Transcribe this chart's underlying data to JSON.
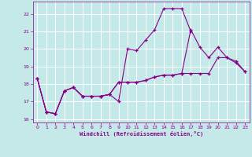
{
  "xlabel": "Windchill (Refroidissement éolien,°C)",
  "xlim": [
    -0.5,
    23.5
  ],
  "ylim": [
    15.8,
    22.7
  ],
  "yticks": [
    16,
    17,
    18,
    19,
    20,
    21,
    22
  ],
  "xticks": [
    0,
    1,
    2,
    3,
    4,
    5,
    6,
    7,
    8,
    9,
    10,
    11,
    12,
    13,
    14,
    15,
    16,
    17,
    18,
    19,
    20,
    21,
    22,
    23
  ],
  "background_color": "#c5e8e8",
  "grid_color": "#ffffff",
  "line_color": "#880088",
  "lines": [
    {
      "x": [
        0,
        1,
        2,
        3,
        4,
        5,
        6,
        7,
        8,
        9,
        10,
        11,
        12,
        13,
        14,
        15,
        16,
        17,
        18,
        19,
        20,
        21,
        22,
        23
      ],
      "y": [
        18.3,
        16.4,
        16.3,
        17.6,
        17.8,
        17.3,
        17.3,
        17.3,
        17.4,
        17.0,
        20.0,
        19.9,
        20.5,
        21.1,
        22.3,
        22.3,
        22.3,
        21.0,
        null,
        null,
        null,
        null,
        null,
        null
      ]
    },
    {
      "x": [
        0,
        1,
        2,
        3,
        4,
        5,
        6,
        7,
        8,
        9,
        10,
        11,
        12,
        13,
        14,
        15,
        16,
        17,
        18,
        19,
        20,
        21,
        22,
        23
      ],
      "y": [
        18.3,
        16.4,
        16.3,
        17.6,
        17.8,
        17.3,
        17.3,
        17.3,
        17.4,
        18.1,
        18.1,
        18.1,
        18.2,
        18.4,
        18.5,
        18.5,
        18.6,
        21.1,
        20.1,
        19.5,
        20.1,
        19.5,
        19.3,
        18.7
      ]
    },
    {
      "x": [
        0,
        1,
        2,
        3,
        4,
        5,
        6,
        7,
        8,
        9,
        10,
        11,
        12,
        13,
        14,
        15,
        16,
        17,
        18,
        19,
        20,
        21,
        22,
        23
      ],
      "y": [
        18.3,
        16.4,
        16.3,
        17.6,
        17.8,
        17.3,
        17.3,
        17.3,
        17.4,
        18.1,
        18.1,
        18.1,
        18.2,
        18.4,
        18.5,
        18.5,
        18.6,
        18.6,
        18.6,
        18.6,
        19.5,
        19.5,
        19.2,
        18.7
      ]
    }
  ]
}
